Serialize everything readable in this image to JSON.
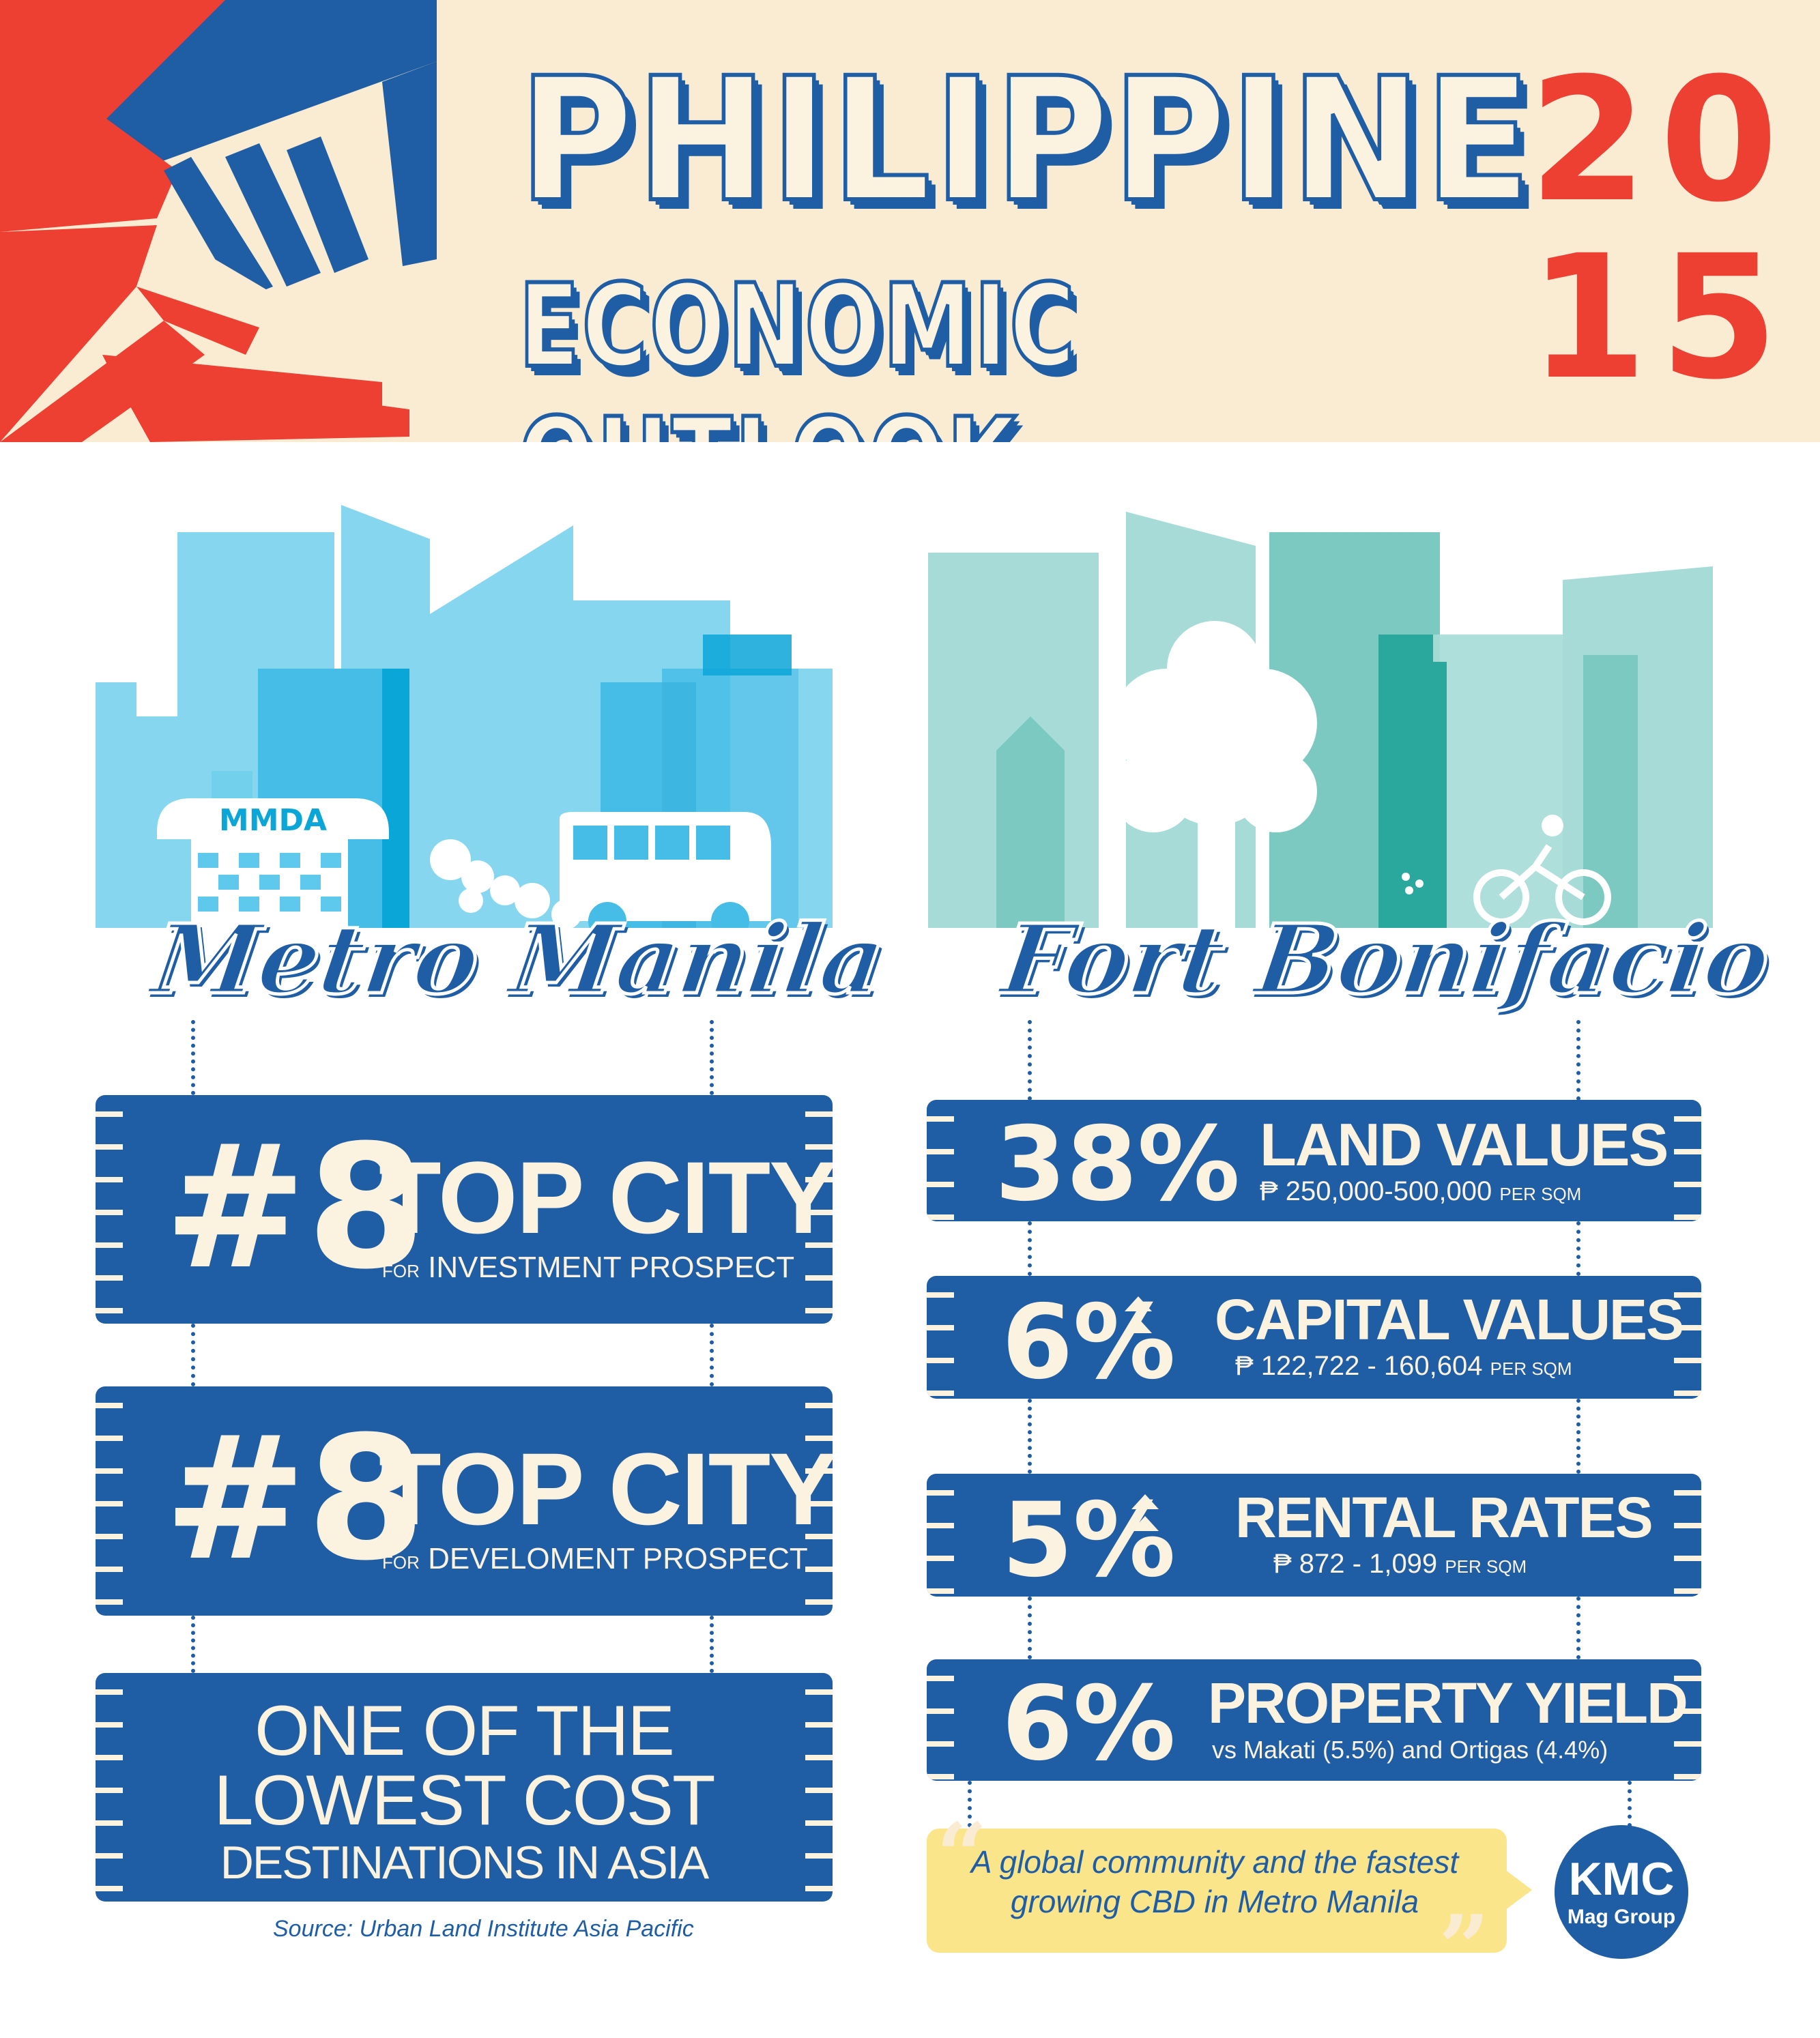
{
  "header": {
    "title_line_1": "PHILIPPINE",
    "title_line_2": "ECONOMIC OUTLOOK",
    "year_top": "20",
    "year_bottom": "15"
  },
  "metro_manila": {
    "title": "Metro Manila",
    "sign_text": "MMDA",
    "cards": [
      {
        "rank": "#8",
        "heading": "TOP CITY",
        "prefix": "FOR",
        "subtitle": "INVESTMENT PROSPECT"
      },
      {
        "rank": "#8",
        "heading": "TOP CITY",
        "prefix": "FOR",
        "subtitle": "DEVELOMENT PROSPECT"
      }
    ],
    "lowest_cost": {
      "line1": "ONE OF THE",
      "line2": "LOWEST COST",
      "line3": "DESTINATIONS IN ASIA"
    },
    "source": "Source: Urban Land Institute Asia Pacific"
  },
  "fort_bonifacio": {
    "title": "Fort Bonifacio",
    "stats": [
      {
        "value": "38%",
        "heading": "LAND VALUES",
        "detail": "₱ 250,000-500,000",
        "unit": "PER SQM",
        "trend": ""
      },
      {
        "value": "6%",
        "heading": "CAPITAL VALUES",
        "detail": "₱ 122,722 - 160,604",
        "unit": "PER SQM",
        "trend": "up"
      },
      {
        "value": "5%",
        "heading": "RENTAL RATES",
        "detail": "₱ 872 - 1,099",
        "unit": "PER SQM",
        "trend": "up"
      },
      {
        "value": "6%",
        "heading": "PROPERTY YIELD",
        "detail": "vs Makati (5.5%) and Ortigas (4.4%)",
        "unit": "",
        "trend": ""
      }
    ],
    "quote": "A global community and the fastest growing CBD in Metro Manila"
  },
  "logo": {
    "main": "KMC",
    "sub": "Mag Group"
  },
  "colors": {
    "brand_blue": "#1f5da5",
    "cream": "#fbf3e0",
    "red": "#ee3f33",
    "sky_blue": "#5ec9ec",
    "teal": "#7cc9c2",
    "quote_yellow": "#fbe58a"
  }
}
